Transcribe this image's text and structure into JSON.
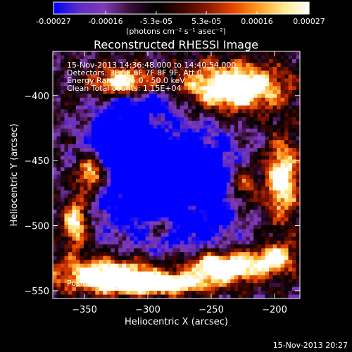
{
  "chart_data": {
    "type": "heatmap",
    "title": "Reconstructed RHESSI Image",
    "xlabel": "Heliocentric X (arcsec)",
    "ylabel": "Heliocentric Y (arcsec)",
    "xlim": [
      -375,
      -180
    ],
    "ylim": [
      -556,
      -366
    ],
    "xticks": [
      -350,
      -300,
      -250,
      -200
    ],
    "yticks": [
      -400,
      -450,
      -500,
      -550
    ],
    "colorbar": {
      "range": [
        -0.00027,
        0.00027
      ],
      "ticks": [
        "-0.00027",
        "-0.00016",
        "-5.3e-05",
        "5.3e-05",
        "0.00016",
        "0.00027"
      ],
      "units": "(photons cm⁻² s⁻¹ asec⁻²)",
      "colors": [
        "#0000ff",
        "#5e2cc5",
        "#7f3cb4",
        "#3a0d38",
        "#000000",
        "#3a0500",
        "#8a1800",
        "#e44400",
        "#ff9a1f",
        "#ffe98a",
        "#ffffff"
      ]
    },
    "annotations": [
      "15-Nov-2013 14:36:48.000 to 14:40:54.000",
      "Detectors: 3F 5F 6F 7F 8F 9F, Att 0",
      "Energy Range: 25.0 - 50.0 keV",
      "Clean     Total counts: 1.15E+04"
    ],
    "peak_label": "Position of Peak = [-238,-535]",
    "peak": [
      -238,
      -535
    ]
  },
  "timestamp": "15-Nov-2013 20:27"
}
